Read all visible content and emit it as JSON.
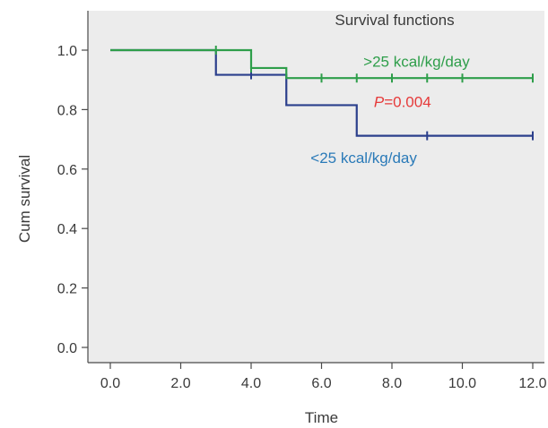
{
  "chart_data": {
    "type": "line",
    "subtype": "kaplan-meier step",
    "title": "Survival functions",
    "xlabel": "Time",
    "ylabel": "Cum survival",
    "xlim": [
      0,
      12
    ],
    "ylim": [
      0,
      1
    ],
    "x_ticks": [
      0,
      2,
      4,
      6,
      8,
      10,
      12
    ],
    "x_tick_labels": [
      "0.0",
      "2.0",
      "4.0",
      "6.0",
      "8.0",
      "10.0",
      "12.0"
    ],
    "y_ticks": [
      0,
      0.2,
      0.4,
      0.6,
      0.8,
      1.0
    ],
    "y_tick_labels": [
      "0.0",
      "0.2",
      "0.4",
      "0.6",
      "0.8",
      "1.0"
    ],
    "grid": false,
    "plot_background": "#ececec",
    "series": [
      {
        "name": ">25 kcal/kg/day",
        "color": "#2e9e4a",
        "steps": [
          [
            0,
            1.0
          ],
          [
            4,
            0.94
          ],
          [
            5,
            0.906
          ],
          [
            12,
            0.906
          ]
        ],
        "censored": [
          [
            3,
            1.0
          ],
          [
            4,
            0.94
          ],
          [
            6,
            0.906
          ],
          [
            7,
            0.906
          ],
          [
            8,
            0.906
          ],
          [
            9,
            0.906
          ],
          [
            10,
            0.906
          ],
          [
            12,
            0.906
          ]
        ]
      },
      {
        "name": "<25 kcal/kg/day",
        "color": "#2b3f8c",
        "steps": [
          [
            0,
            1.0
          ],
          [
            3,
            0.917
          ],
          [
            5,
            0.815
          ],
          [
            7,
            0.712
          ],
          [
            12,
            0.712
          ]
        ],
        "censored": [
          [
            4,
            0.917
          ],
          [
            9,
            0.712
          ],
          [
            12,
            0.712
          ]
        ]
      }
    ],
    "annotations": [
      {
        "text": ">25 kcal/kg/day",
        "x": 8.7,
        "y": 0.945,
        "color": "#2e9e4a"
      },
      {
        "text_italic": "P",
        "text": "=0.004",
        "x": 8.3,
        "y": 0.808,
        "color": "#e63a3a"
      },
      {
        "text": "<25 kcal/kg/day",
        "x": 7.2,
        "y": 0.62,
        "color": "#2a7ab8"
      }
    ]
  }
}
